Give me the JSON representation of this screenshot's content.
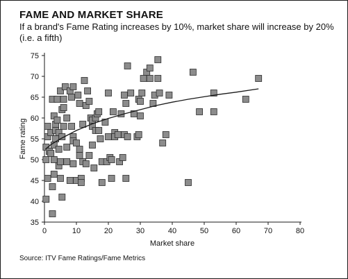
{
  "chart_data": {
    "type": "scatter",
    "title": "FAME AND MARKET SHARE",
    "subtitle": "If a brand's Fame Rating increases by 10%, market share will increase by 20% (i.e. a fifth)",
    "xlabel": "Market share",
    "ylabel": "Fame rating",
    "xlim": [
      0,
      80
    ],
    "ylim": [
      35,
      75
    ],
    "xticks": [
      0,
      10,
      20,
      30,
      40,
      50,
      60,
      70,
      80
    ],
    "yticks": [
      35,
      40,
      45,
      50,
      55,
      60,
      65,
      70,
      75
    ],
    "grid": false,
    "source": "Source: ITV Fame Ratings/Fame Metrics",
    "points": [
      [
        0.5,
        40.5
      ],
      [
        0.5,
        50
      ],
      [
        0.5,
        53
      ],
      [
        1,
        55.5
      ],
      [
        1,
        58
      ],
      [
        1,
        45.5
      ],
      [
        1.5,
        52
      ],
      [
        2,
        51.5
      ],
      [
        2,
        56.5
      ],
      [
        2.5,
        64.5
      ],
      [
        2.5,
        43.5
      ],
      [
        2.5,
        37
      ],
      [
        3,
        53.5
      ],
      [
        3,
        60.5
      ],
      [
        3,
        50
      ],
      [
        3,
        46.5
      ],
      [
        3.5,
        58.5
      ],
      [
        3.5,
        57
      ],
      [
        3.5,
        55
      ],
      [
        4,
        64.5
      ],
      [
        4,
        59.5
      ],
      [
        4.5,
        52.5
      ],
      [
        4.5,
        48.5
      ],
      [
        4.5,
        56.5
      ],
      [
        5,
        66.5
      ],
      [
        5,
        45.5
      ],
      [
        5,
        49.5
      ],
      [
        5.5,
        62
      ],
      [
        5.5,
        55.5
      ],
      [
        5.5,
        41
      ],
      [
        6,
        64.5
      ],
      [
        6,
        62.5
      ],
      [
        6,
        58
      ],
      [
        6.5,
        67.5
      ],
      [
        7,
        60
      ],
      [
        7,
        53
      ],
      [
        7,
        49.5
      ],
      [
        8,
        66.5
      ],
      [
        8,
        45
      ],
      [
        8.5,
        65
      ],
      [
        8.5,
        58
      ],
      [
        9,
        67.5
      ],
      [
        9,
        55.5
      ],
      [
        9,
        54.5
      ],
      [
        9,
        49
      ],
      [
        10,
        54
      ],
      [
        10,
        45
      ],
      [
        10.5,
        65.5
      ],
      [
        11,
        63.5
      ],
      [
        11,
        52.5
      ],
      [
        11,
        51
      ],
      [
        11.5,
        45.5
      ],
      [
        11.5,
        44.5
      ],
      [
        12,
        49.5
      ],
      [
        12,
        58.5
      ],
      [
        12.5,
        69
      ],
      [
        13,
        49
      ],
      [
        13,
        63
      ],
      [
        13.5,
        66.5
      ],
      [
        14,
        51
      ],
      [
        14,
        64
      ],
      [
        14.5,
        60
      ],
      [
        15,
        58
      ],
      [
        15,
        59.5
      ],
      [
        15,
        53.5
      ],
      [
        15.5,
        48
      ],
      [
        16,
        57
      ],
      [
        16,
        60
      ],
      [
        16.5,
        61
      ],
      [
        17,
        61.5
      ],
      [
        17,
        57
      ],
      [
        17.5,
        55
      ],
      [
        18,
        49.5
      ],
      [
        18,
        44.5
      ],
      [
        19,
        59
      ],
      [
        19.5,
        49.5
      ],
      [
        20,
        66
      ],
      [
        20,
        55.5
      ],
      [
        20.5,
        50.5
      ],
      [
        21,
        50
      ],
      [
        21,
        45.5
      ],
      [
        21.5,
        61.5
      ],
      [
        22,
        56.5
      ],
      [
        22,
        55.5
      ],
      [
        23,
        56
      ],
      [
        23.5,
        49.5
      ],
      [
        24,
        61
      ],
      [
        24.5,
        50.5
      ],
      [
        25,
        65.5
      ],
      [
        25,
        56
      ],
      [
        25.5,
        63.5
      ],
      [
        25.5,
        45.5
      ],
      [
        26,
        72.5
      ],
      [
        26,
        55.5
      ],
      [
        27,
        66
      ],
      [
        28,
        61
      ],
      [
        29,
        55.5
      ],
      [
        29.5,
        56
      ],
      [
        29.5,
        64.5
      ],
      [
        30,
        60.5
      ],
      [
        30,
        64
      ],
      [
        30.5,
        66
      ],
      [
        31,
        69.5
      ],
      [
        32,
        71
      ],
      [
        33,
        72
      ],
      [
        33,
        69.5
      ],
      [
        34,
        63.5
      ],
      [
        34.5,
        65.5
      ],
      [
        35.5,
        74
      ],
      [
        35.5,
        69.5
      ],
      [
        36,
        66
      ],
      [
        37,
        54
      ],
      [
        38,
        56
      ],
      [
        39,
        65.5
      ],
      [
        45,
        44.5
      ],
      [
        46.5,
        71
      ],
      [
        48.5,
        61.5
      ],
      [
        53,
        66
      ],
      [
        53,
        61.5
      ],
      [
        63,
        64.5
      ],
      [
        67,
        69.5
      ]
    ],
    "trendline": {
      "type": "log",
      "points": [
        [
          0.3,
          52.5
        ],
        [
          2,
          53.6
        ],
        [
          5,
          55
        ],
        [
          10,
          57
        ],
        [
          15,
          58.6
        ],
        [
          20,
          59.9
        ],
        [
          25,
          61
        ],
        [
          30,
          62
        ],
        [
          35,
          63
        ],
        [
          40,
          63.8
        ],
        [
          45,
          64.5
        ],
        [
          50,
          65.1
        ],
        [
          55,
          65.7
        ],
        [
          60,
          66.2
        ],
        [
          67,
          67
        ]
      ]
    },
    "colors": {
      "marker_fill": "#8c8c8c",
      "marker_stroke": "#2b2b2b",
      "trend": "#1a1a1a",
      "axis": "#1a1a1a"
    }
  }
}
